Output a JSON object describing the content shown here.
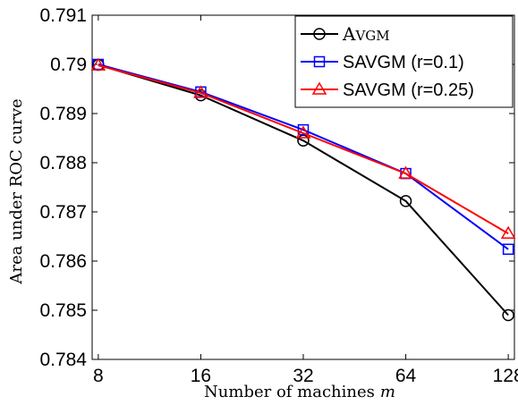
{
  "chart_data": {
    "type": "line",
    "title": "",
    "xlabel": "Number of machines",
    "xlabel_var": "m",
    "ylabel": "Area under ROC curve",
    "x": [
      8,
      16,
      32,
      64,
      128
    ],
    "x_scale": "log2",
    "x_tick_labels": [
      "8",
      "16",
      "32",
      "64",
      "128"
    ],
    "ylim": [
      0.784,
      0.791
    ],
    "y_ticks": [
      0.784,
      0.785,
      0.786,
      0.787,
      0.788,
      0.789,
      0.79,
      0.791
    ],
    "y_tick_labels": [
      "0.784",
      "0.785",
      "0.786",
      "0.787",
      "0.788",
      "0.789",
      "0.79",
      "0.791"
    ],
    "grid": false,
    "legend_position": "top-right",
    "series": [
      {
        "name": "AVGM",
        "color": "#000000",
        "marker": "circle",
        "values": [
          0.78999,
          0.78937,
          0.78845,
          0.78722,
          0.7849
        ]
      },
      {
        "name": "SAVGM (r=0.1)",
        "color": "#0000ff",
        "marker": "square",
        "values": [
          0.79,
          0.78944,
          0.78867,
          0.78778,
          0.78624
        ]
      },
      {
        "name": "SAVGM (r=0.25)",
        "color": "#ff0000",
        "marker": "triangle",
        "values": [
          0.78998,
          0.78942,
          0.7886,
          0.78778,
          0.78656
        ]
      }
    ]
  }
}
